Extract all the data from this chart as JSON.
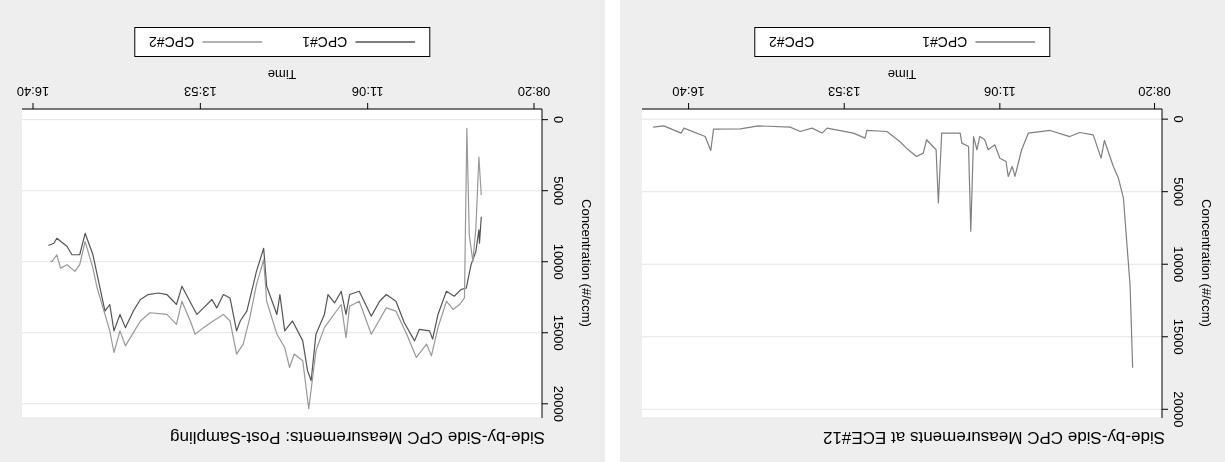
{
  "chart_data": [
    {
      "type": "line",
      "title": "Side-by-Side CPC Measurements at ECE#12",
      "xlabel": "Time",
      "ylabel": "Concentration (#/ccm)",
      "xlim": [
        17.5,
        8.2
      ],
      "ylim": [
        20600,
        -700
      ],
      "xticks": [
        {
          "value": 8.3333,
          "label": "08:20"
        },
        {
          "value": 11.1,
          "label": "11:06"
        },
        {
          "value": 13.8833,
          "label": "13:53"
        },
        {
          "value": 16.6667,
          "label": "16:40"
        }
      ],
      "yticks": [
        0,
        5000,
        10000,
        15000,
        20000
      ],
      "grid": "y",
      "legend": "top",
      "marker": "none",
      "line_style": "solid",
      "series": [
        {
          "name": "CPC#1",
          "color": "#808080",
          "x": [
            8.725,
            8.77,
            8.89,
            8.98,
            9.07,
            9.23,
            9.29,
            9.43,
            9.67,
            9.85,
            10.2,
            10.59,
            10.71,
            10.83,
            10.88,
            10.95,
            10.99,
            11.1,
            11.19,
            11.31,
            11.37,
            11.46,
            11.51,
            11.57,
            11.62,
            11.66,
            11.78,
            11.81,
            12.14,
            12.2,
            12.24,
            12.41,
            12.47,
            12.59,
            12.77,
            12.89,
            13.12,
            13.48,
            13.51,
            13.72,
            14.19,
            14.28,
            14.46,
            14.67,
            14.85,
            15.42,
            15.74,
            16.22,
            16.27,
            16.37,
            16.75,
            16.8,
            17.11,
            17.3
          ],
          "values": [
            17130,
            11520,
            5440,
            4060,
            3260,
            1470,
            2690,
            1080,
            920,
            1200,
            780,
            960,
            2110,
            3950,
            3260,
            3950,
            2920,
            2690,
            1770,
            2110,
            1420,
            1200,
            2110,
            1200,
            7730,
            1880,
            1650,
            960,
            960,
            5780,
            2110,
            1420,
            2340,
            2570,
            2000,
            1540,
            850,
            780,
            1310,
            960,
            620,
            960,
            620,
            850,
            550,
            460,
            670,
            690,
            2160,
            1200,
            620,
            960,
            460,
            550
          ]
        },
        {
          "name": "CPC#2"
        }
      ]
    },
    {
      "type": "line",
      "title": "Side-by-Side CPC Measurements: Post-Sampling",
      "xlabel": "Time",
      "ylabel": "Concentration (#/ccm)",
      "xlim": [
        16.85,
        8.2
      ],
      "ylim": [
        21000,
        -750
      ],
      "xticks": [
        {
          "value": 8.3333,
          "label": "08:20"
        },
        {
          "value": 11.1,
          "label": "11:06"
        },
        {
          "value": 13.8833,
          "label": "13:53"
        },
        {
          "value": 16.6667,
          "label": "16:40"
        }
      ],
      "yticks": [
        0,
        5000,
        10000,
        15000,
        20000
      ],
      "grid": "y",
      "legend": "top",
      "marker": "none",
      "line_style": "solid",
      "series": [
        {
          "name": "CPC#1",
          "color": "#555555",
          "x": [
            9.21,
            9.24,
            9.25,
            9.3,
            9.38,
            9.46,
            9.55,
            9.66,
            9.79,
            9.93,
            10.02,
            10.07,
            10.24,
            10.32,
            10.49,
            10.63,
            10.79,
            10.9,
            11.04,
            11.24,
            11.4,
            11.46,
            11.54,
            11.65,
            11.76,
            11.82,
            11.96,
            12.04,
            12.1,
            12.18,
            12.35,
            12.48,
            12.56,
            12.61,
            12.78,
            12.83,
            12.95,
            13.03,
            13.11,
            13.22,
            13.28,
            13.39,
            13.5,
            13.61,
            13.69,
            13.83,
            13.94,
            14.03,
            14.19,
            14.28,
            14.44,
            14.58,
            14.75,
            14.88,
            15.0,
            15.13,
            15.22,
            15.32,
            15.39,
            15.47,
            15.6,
            15.67,
            15.8,
            15.89,
            16.02,
            16.1,
            16.27,
            16.32,
            16.41
          ],
          "values": [
            6830,
            8700,
            7760,
            9280,
            10210,
            11850,
            11960,
            12430,
            12080,
            13710,
            15450,
            14870,
            14760,
            15570,
            14290,
            12780,
            12310,
            12780,
            13830,
            12080,
            12310,
            13710,
            12080,
            12900,
            12310,
            13710,
            15100,
            18370,
            17670,
            15570,
            14170,
            14870,
            12310,
            13710,
            11730,
            9050,
            10680,
            12080,
            13480,
            14170,
            14870,
            12550,
            12310,
            13250,
            12660,
            13250,
            13710,
            13010,
            11730,
            13010,
            12310,
            12200,
            12310,
            12660,
            13480,
            14640,
            13710,
            14870,
            13010,
            13480,
            10910,
            9510,
            8000,
            9510,
            9510,
            8930,
            8350,
            8700,
            8860
          ]
        },
        {
          "name": "CPC#2",
          "color": "#999999",
          "x": [
            9.21,
            9.25,
            9.3,
            9.35,
            9.41,
            9.45,
            9.49,
            9.57,
            9.68,
            9.79,
            9.93,
            10.04,
            10.12,
            10.29,
            10.45,
            10.63,
            10.79,
            11.04,
            11.24,
            11.4,
            11.46,
            11.54,
            11.82,
            11.96,
            12.08,
            12.18,
            12.32,
            12.4,
            12.48,
            12.61,
            12.78,
            12.83,
            12.95,
            13.06,
            13.17,
            13.28,
            13.39,
            13.5,
            13.67,
            13.83,
            13.97,
            14.05,
            14.19,
            14.28,
            14.44,
            14.72,
            14.88,
            15.13,
            15.22,
            15.32,
            15.39,
            15.47,
            15.6,
            15.67,
            15.8,
            15.89,
            15.97,
            16.1,
            16.21,
            16.27,
            16.35,
            16.38
          ],
          "values": [
            5310,
            2640,
            7650,
            9980,
            8110,
            610,
            12550,
            13010,
            13360,
            12780,
            14640,
            16620,
            15800,
            16740,
            15100,
            13480,
            13250,
            15100,
            12780,
            13130,
            15340,
            13010,
            14640,
            16270,
            20350,
            16970,
            16500,
            17440,
            16040,
            15100,
            12780,
            9860,
            11610,
            13940,
            15800,
            16500,
            14170,
            13710,
            14170,
            14640,
            15100,
            14170,
            12780,
            14410,
            13710,
            13590,
            14170,
            15920,
            14870,
            16390,
            14870,
            13710,
            11850,
            10450,
            8580,
            10210,
            10680,
            10210,
            10450,
            9510,
            9980,
            9980
          ]
        }
      ]
    }
  ]
}
